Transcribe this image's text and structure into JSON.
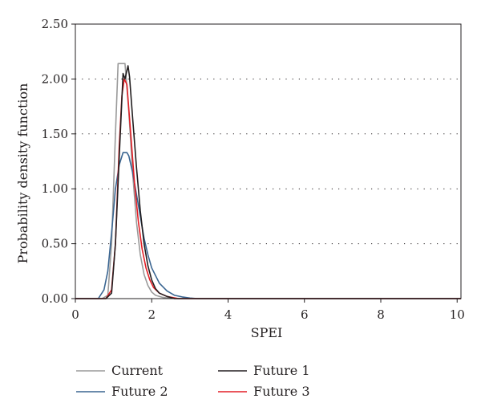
{
  "chart_data": {
    "type": "line",
    "title": "",
    "xlabel": "SPEI",
    "ylabel": "Probability density function",
    "xlim": [
      0,
      10.1
    ],
    "ylim": [
      0,
      2.5
    ],
    "xticks": [
      0,
      2,
      4,
      6,
      8,
      10
    ],
    "xtick_labels": [
      "0",
      "2",
      "4",
      "6",
      "8",
      "10"
    ],
    "yticks": [
      0,
      0.5,
      1.0,
      1.5,
      2.0,
      2.5
    ],
    "ytick_labels": [
      "0.00",
      "0.50",
      "1.00",
      "1.50",
      "2.00",
      "2.50"
    ],
    "grid": "horizontal dotted",
    "legend_position": "bottom",
    "series": [
      {
        "name": "Current",
        "color": "#9a9a9a",
        "x": [
          0,
          0.7,
          0.85,
          0.95,
          1.05,
          1.12,
          1.18,
          1.3,
          1.4,
          1.5,
          1.6,
          1.7,
          1.8,
          1.9,
          2.0,
          2.1,
          2.3,
          2.6,
          10.1
        ],
        "y": [
          0,
          0,
          0.03,
          0.5,
          1.5,
          2.14,
          2.14,
          2.14,
          1.7,
          1.15,
          0.7,
          0.4,
          0.22,
          0.12,
          0.06,
          0.03,
          0.01,
          0,
          0
        ]
      },
      {
        "name": "Future 1",
        "color": "#231f20",
        "x": [
          0,
          0.8,
          0.95,
          1.05,
          1.15,
          1.25,
          1.3,
          1.38,
          1.42,
          1.5,
          1.6,
          1.7,
          1.8,
          1.9,
          2.0,
          2.1,
          2.2,
          2.4,
          2.6,
          10.1
        ],
        "y": [
          0,
          0,
          0.05,
          0.5,
          1.3,
          2.05,
          2.0,
          2.12,
          2.02,
          1.65,
          1.2,
          0.8,
          0.5,
          0.3,
          0.17,
          0.09,
          0.05,
          0.02,
          0,
          0
        ]
      },
      {
        "name": "Future 2",
        "color": "#3a6591",
        "x": [
          0,
          0.6,
          0.75,
          0.85,
          0.95,
          1.05,
          1.15,
          1.25,
          1.35,
          1.4,
          1.5,
          1.6,
          1.7,
          1.8,
          1.9,
          2.0,
          2.2,
          2.4,
          2.6,
          2.8,
          3.0,
          3.2,
          10.1
        ],
        "y": [
          0,
          0,
          0.08,
          0.25,
          0.6,
          1.0,
          1.22,
          1.33,
          1.33,
          1.3,
          1.15,
          0.95,
          0.75,
          0.55,
          0.4,
          0.28,
          0.14,
          0.07,
          0.03,
          0.015,
          0.005,
          0,
          0
        ]
      },
      {
        "name": "Future 3",
        "color": "#e31f26",
        "x": [
          0,
          0.8,
          0.95,
          1.05,
          1.15,
          1.22,
          1.28,
          1.35,
          1.45,
          1.55,
          1.65,
          1.75,
          1.85,
          1.95,
          2.05,
          2.2,
          2.4,
          2.7,
          10.1
        ],
        "y": [
          0,
          0,
          0.08,
          0.5,
          1.4,
          1.85,
          2.0,
          1.95,
          1.5,
          1.05,
          0.7,
          0.45,
          0.28,
          0.17,
          0.1,
          0.05,
          0.02,
          0,
          0
        ]
      }
    ]
  },
  "legend": [
    {
      "label": "Current",
      "color": "#9a9a9a"
    },
    {
      "label": "Future 1",
      "color": "#231f20"
    },
    {
      "label": "Future 2",
      "color": "#3a6591"
    },
    {
      "label": "Future 3",
      "color": "#e31f26"
    }
  ]
}
